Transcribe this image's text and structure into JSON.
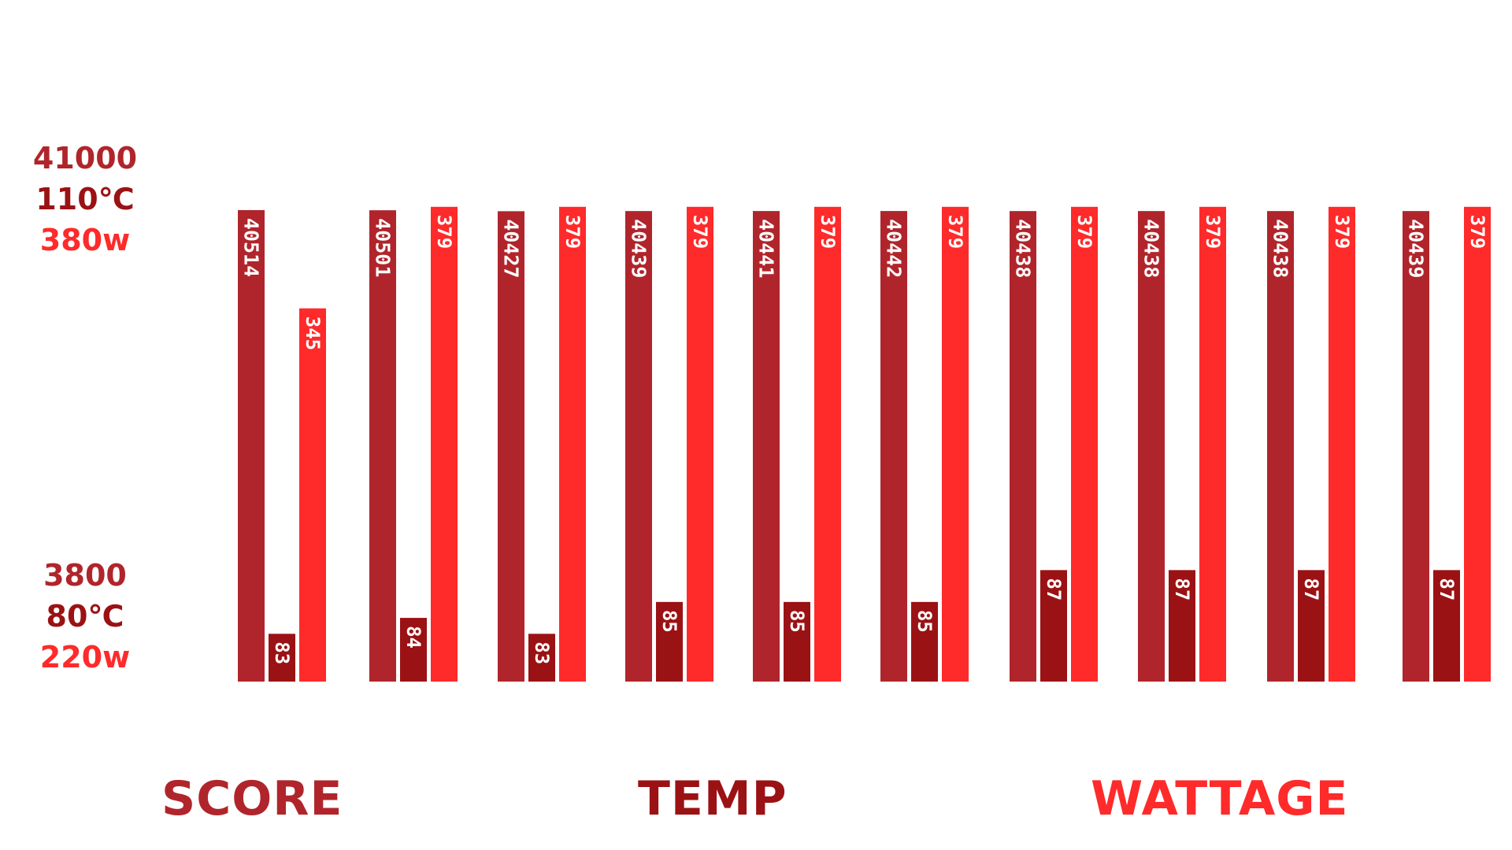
{
  "chart_data": {
    "type": "bar",
    "colors": {
      "score": "#b0252b",
      "temp": "#9b1214",
      "wattage": "#ff2a2a"
    },
    "axis": {
      "score": {
        "min": 3800,
        "max": 41000,
        "top_label": "41000",
        "bottom_label": "3800"
      },
      "temp": {
        "min": 80,
        "max": 110,
        "top_label": "110℃",
        "bottom_label": "80℃"
      },
      "wattage": {
        "min": 220,
        "max": 380,
        "top_label": "380w",
        "bottom_label": "220w"
      }
    },
    "series": [
      {
        "name": "SCORE",
        "values": [
          40514,
          40501,
          40427,
          40439,
          40441,
          40442,
          40438,
          40438,
          40438,
          40439
        ]
      },
      {
        "name": "TEMP",
        "values": [
          83,
          84,
          83,
          85,
          85,
          85,
          87,
          87,
          87,
          87
        ]
      },
      {
        "name": "WATTAGE",
        "values": [
          345,
          379,
          379,
          379,
          379,
          379,
          379,
          379,
          379,
          379
        ]
      }
    ],
    "legend_position": "bottom",
    "grid": false
  }
}
